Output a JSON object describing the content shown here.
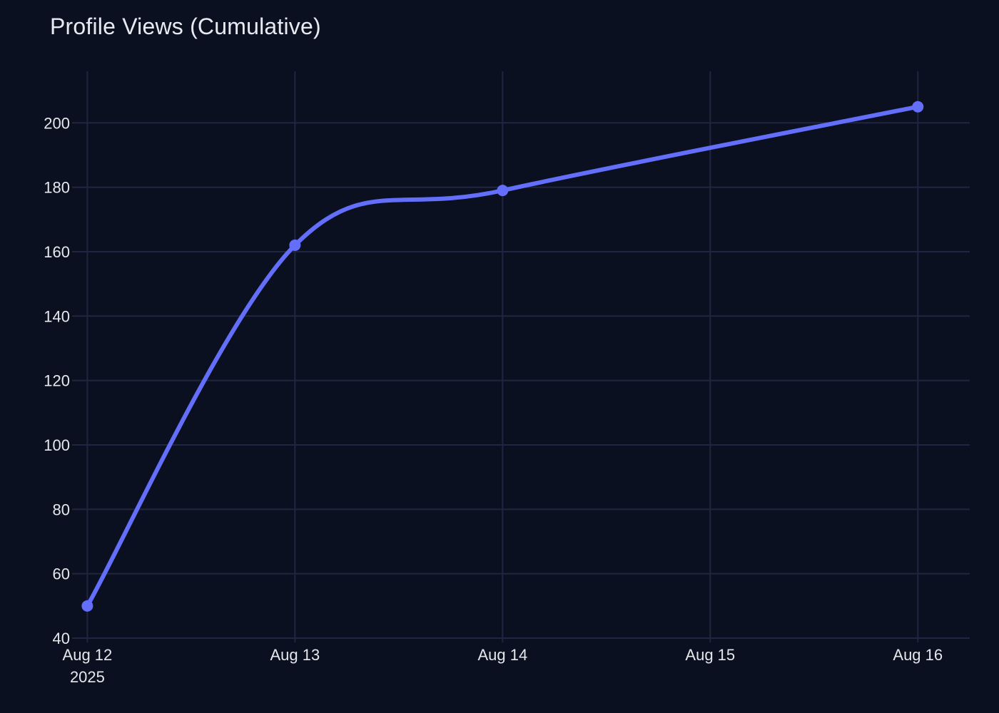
{
  "chart_data": {
    "type": "line",
    "title": "Profile Views (Cumulative)",
    "xlabel": "",
    "ylabel": "",
    "x": [
      "2025-08-12",
      "2025-08-13",
      "2025-08-14",
      "2025-08-16"
    ],
    "series": [
      {
        "values": [
          50,
          162,
          179,
          205
        ],
        "color": "#636efa"
      }
    ],
    "x_ticks": [
      {
        "date": "2025-08-12",
        "label": "Aug 12",
        "sublabel": "2025"
      },
      {
        "date": "2025-08-13",
        "label": "Aug 13",
        "sublabel": ""
      },
      {
        "date": "2025-08-14",
        "label": "Aug 14",
        "sublabel": ""
      },
      {
        "date": "2025-08-15",
        "label": "Aug 15",
        "sublabel": ""
      },
      {
        "date": "2025-08-16",
        "label": "Aug 16",
        "sublabel": ""
      }
    ],
    "xlim": [
      "2025-08-11 22:14",
      "2025-08-16 06:00"
    ],
    "y_ticks": [
      40,
      60,
      80,
      100,
      120,
      140,
      160,
      180,
      200
    ],
    "ylim": [
      40,
      216
    ],
    "grid": true,
    "line_shape": "spline",
    "markers": true,
    "colors": {
      "background": "#0b1020",
      "grid": "#20263f",
      "text": "#e5e7eb",
      "line": "#636efa"
    }
  }
}
